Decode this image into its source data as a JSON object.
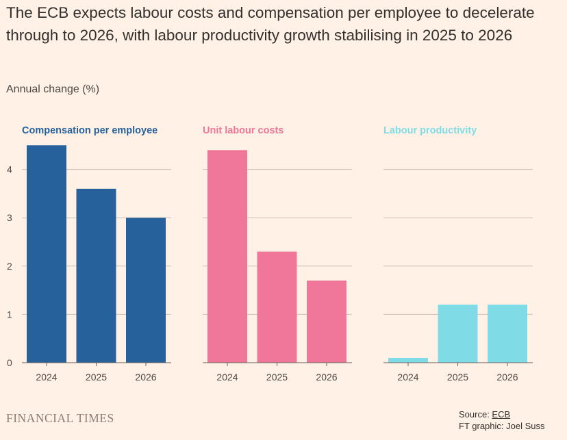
{
  "title": "The ECB expects labour costs and compensation per employee to decelerate through to 2026, with labour productivity growth stabilising in 2025 to 2026",
  "subtitle": "Annual change (%)",
  "footer": {
    "brand": "FINANCIAL TIMES",
    "source_label": "Source: ",
    "source_link": "ECB",
    "credit": "FT graphic: Joel Suss"
  },
  "colors": {
    "compensation": "#26619C",
    "unit_labour": "#F07799",
    "productivity": "#7FDCE6",
    "grid": "#C9C0B8",
    "axis": "#66605C"
  },
  "chart_data": [
    {
      "type": "bar",
      "title": "Compensation per employee",
      "title_color": "#26619C",
      "categories": [
        "2024",
        "2025",
        "2026"
      ],
      "values": [
        4.5,
        3.6,
        3.0
      ],
      "ylim": [
        0,
        4.5
      ],
      "yticks": [
        0,
        1,
        2,
        3,
        4
      ],
      "ylabel": "Annual change (%)"
    },
    {
      "type": "bar",
      "title": "Unit labour costs",
      "title_color": "#F07799",
      "categories": [
        "2024",
        "2025",
        "2026"
      ],
      "values": [
        4.4,
        2.3,
        1.7
      ],
      "ylim": [
        0,
        4.5
      ],
      "yticks": [
        0,
        1,
        2,
        3,
        4
      ],
      "ylabel": "Annual change (%)"
    },
    {
      "type": "bar",
      "title": "Labour productivity",
      "title_color": "#7FDCE6",
      "categories": [
        "2024",
        "2025",
        "2026"
      ],
      "values": [
        0.1,
        1.2,
        1.2
      ],
      "ylim": [
        0,
        4.5
      ],
      "yticks": [
        0,
        1,
        2,
        3,
        4
      ],
      "ylabel": "Annual change (%)"
    }
  ]
}
